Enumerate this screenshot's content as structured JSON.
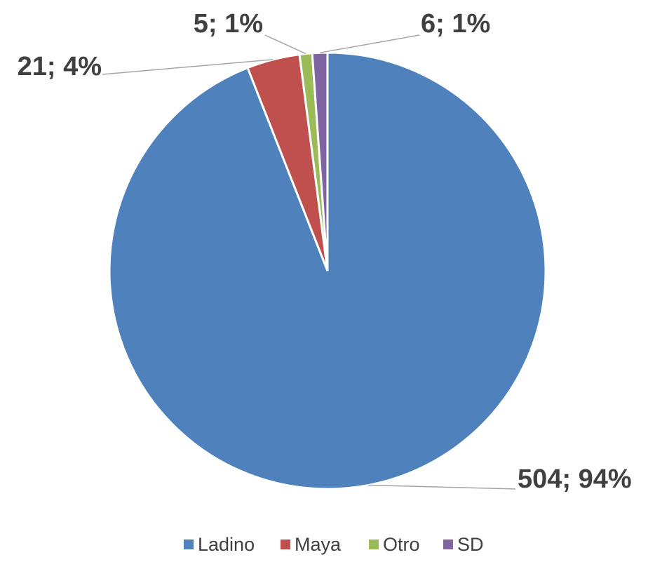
{
  "chart_data": {
    "type": "pie",
    "categories": [
      "Ladino",
      "Maya",
      "Otro",
      "SD"
    ],
    "values": [
      504,
      21,
      5,
      6
    ],
    "value_labels": [
      "504; 94%",
      "21; 4%",
      "5; 1%",
      "6; 1%"
    ],
    "colors": [
      "#4f81bd",
      "#c0504d",
      "#9bbb59",
      "#8064a2"
    ],
    "legend": "bottom"
  }
}
